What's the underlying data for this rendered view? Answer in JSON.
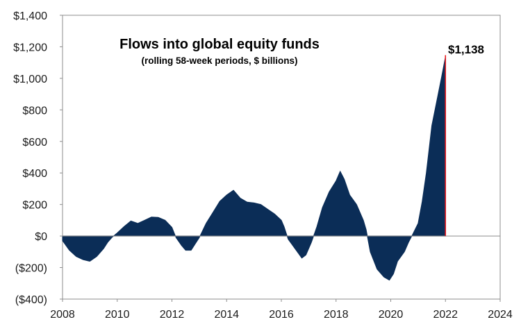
{
  "chart_data": {
    "type": "area",
    "title": "Flows into global equity funds",
    "subtitle": "(rolling  58-week periods, $ billions)",
    "xlabel": "",
    "ylabel": "",
    "xlim": [
      2008,
      2024
    ],
    "ylim": [
      -400,
      1400
    ],
    "x_ticks": [
      "2008",
      "2010",
      "2012",
      "2014",
      "2016",
      "2018",
      "2020",
      "2022",
      "2024"
    ],
    "y_ticks": [
      "$1,400",
      "$1,200",
      "$1,000",
      "$800",
      "$600",
      "$400",
      "$200",
      "$0",
      "($200)",
      "($400)"
    ],
    "grid": false,
    "legend": "none",
    "colors": {
      "fill": "#0b2d57",
      "marker": "#e8191e",
      "axis": "#8c8c8c"
    },
    "callout": {
      "label": "$1,138",
      "x": 2022.0,
      "y": 1138
    },
    "series": [
      {
        "x": [
          2008.0,
          2008.25,
          2008.5,
          2008.75,
          2009.0,
          2009.25,
          2009.5,
          2009.65,
          2009.8,
          2010.0,
          2010.25,
          2010.5,
          2010.75,
          2011.0,
          2011.25,
          2011.5,
          2011.75,
          2012.0,
          2012.15,
          2012.35,
          2012.5,
          2012.7,
          2012.85,
          2013.0,
          2013.25,
          2013.5,
          2013.75,
          2014.0,
          2014.25,
          2014.5,
          2014.75,
          2015.0,
          2015.25,
          2015.5,
          2015.75,
          2016.0,
          2016.1,
          2016.25,
          2016.5,
          2016.75,
          2016.9,
          2017.1,
          2017.3,
          2017.5,
          2017.75,
          2018.0,
          2018.15,
          2018.3,
          2018.5,
          2018.75,
          2019.0,
          2019.1,
          2019.25,
          2019.5,
          2019.75,
          2019.95,
          2020.1,
          2020.25,
          2020.5,
          2020.65,
          2020.8,
          2021.0,
          2021.15,
          2021.3,
          2021.5,
          2021.7,
          2021.85,
          2022.0
        ],
        "y": [
          -30,
          -90,
          -130,
          -150,
          -160,
          -130,
          -80,
          -40,
          -10,
          20,
          60,
          95,
          80,
          100,
          120,
          118,
          100,
          55,
          -10,
          -60,
          -90,
          -90,
          -50,
          -10,
          80,
          150,
          220,
          260,
          290,
          240,
          215,
          210,
          200,
          170,
          140,
          100,
          60,
          -20,
          -80,
          -140,
          -120,
          -40,
          60,
          180,
          280,
          350,
          410,
          360,
          260,
          200,
          100,
          40,
          -100,
          -210,
          -260,
          -280,
          -240,
          -160,
          -100,
          -40,
          10,
          80,
          220,
          400,
          700,
          870,
          1000,
          1138
        ]
      }
    ]
  }
}
